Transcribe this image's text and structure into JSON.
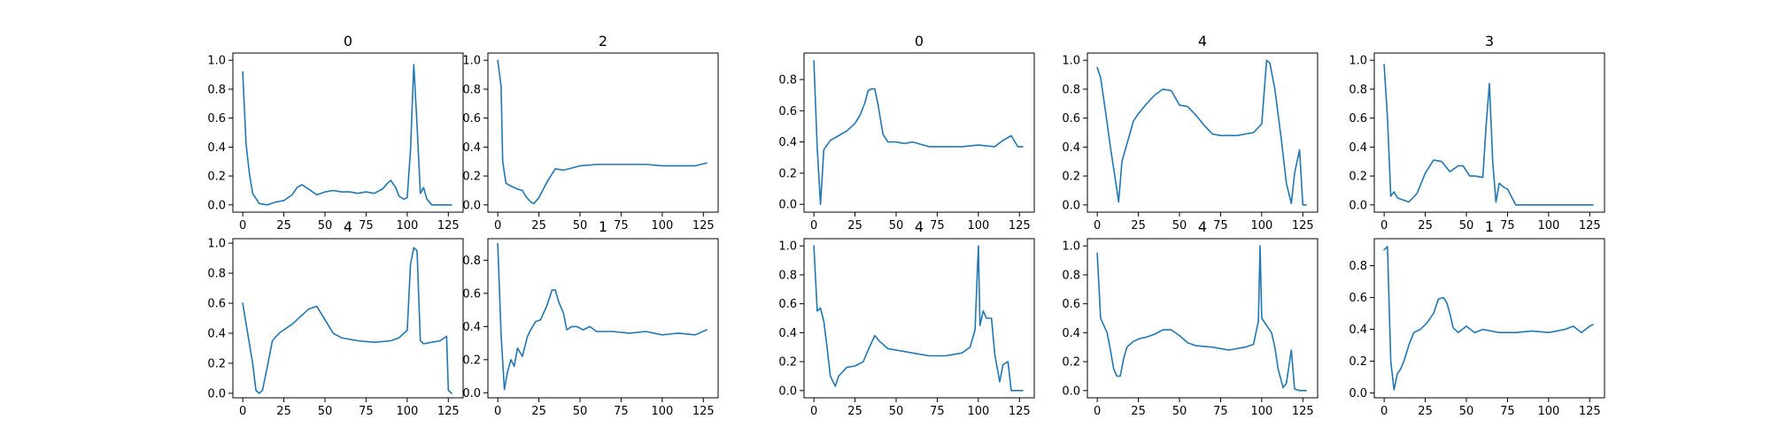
{
  "colors": {
    "line": "#1f77b4",
    "axes": "#000000",
    "background": "#ffffff"
  },
  "chart_data": [
    {
      "type": "line",
      "title": "0",
      "xlim": [
        -6,
        134
      ],
      "ylim": [
        -0.05,
        1.05
      ],
      "xticks": [
        "0",
        "25",
        "50",
        "75",
        "100",
        "125"
      ],
      "yticks": [
        "0.0",
        "0.2",
        "0.4",
        "0.6",
        "0.8",
        "1.0"
      ],
      "x": [
        0,
        2,
        4,
        6,
        10,
        15,
        20,
        25,
        30,
        33,
        36,
        40,
        45,
        50,
        55,
        60,
        65,
        70,
        75,
        80,
        85,
        88,
        90,
        93,
        95,
        98,
        100,
        102,
        104,
        106,
        108,
        110,
        112,
        115,
        120,
        127
      ],
      "y": [
        0.92,
        0.42,
        0.22,
        0.08,
        0.01,
        0.0,
        0.02,
        0.03,
        0.07,
        0.12,
        0.14,
        0.11,
        0.07,
        0.09,
        0.1,
        0.09,
        0.09,
        0.08,
        0.09,
        0.08,
        0.11,
        0.15,
        0.17,
        0.12,
        0.06,
        0.04,
        0.05,
        0.38,
        0.97,
        0.55,
        0.08,
        0.12,
        0.04,
        0.0,
        0.0,
        0.0
      ]
    },
    {
      "type": "line",
      "title": "2",
      "xlim": [
        -6,
        134
      ],
      "ylim": [
        -0.05,
        1.05
      ],
      "xticks": [
        "0",
        "25",
        "50",
        "75",
        "100",
        "125"
      ],
      "yticks": [
        "0.0",
        "0.2",
        "0.4",
        "0.6",
        "0.8",
        "1.0"
      ],
      "x": [
        0,
        2,
        3,
        5,
        8,
        12,
        15,
        17,
        20,
        22,
        25,
        30,
        35,
        40,
        50,
        60,
        75,
        90,
        100,
        110,
        120,
        127
      ],
      "y": [
        1.0,
        0.82,
        0.3,
        0.15,
        0.13,
        0.11,
        0.1,
        0.06,
        0.02,
        0.01,
        0.05,
        0.16,
        0.25,
        0.24,
        0.27,
        0.28,
        0.28,
        0.28,
        0.27,
        0.27,
        0.27,
        0.29
      ]
    },
    {
      "type": "line",
      "title": "0",
      "xlim": [
        -6,
        134
      ],
      "ylim": [
        -0.05,
        0.97
      ],
      "xticks": [
        "0",
        "25",
        "50",
        "75",
        "100",
        "125"
      ],
      "yticks": [
        "0.0",
        "0.2",
        "0.4",
        "0.6",
        "0.8"
      ],
      "x": [
        0,
        2,
        4,
        6,
        10,
        15,
        20,
        25,
        28,
        31,
        33,
        35,
        37,
        39,
        42,
        45,
        50,
        55,
        60,
        70,
        80,
        90,
        100,
        110,
        115,
        120,
        124,
        127
      ],
      "y": [
        0.92,
        0.36,
        0.0,
        0.35,
        0.41,
        0.44,
        0.47,
        0.52,
        0.57,
        0.65,
        0.73,
        0.74,
        0.74,
        0.64,
        0.45,
        0.4,
        0.4,
        0.39,
        0.4,
        0.37,
        0.37,
        0.37,
        0.38,
        0.37,
        0.41,
        0.44,
        0.37,
        0.37
      ]
    },
    {
      "type": "line",
      "title": "4",
      "xlim": [
        -6,
        134
      ],
      "ylim": [
        -0.05,
        1.05
      ],
      "xticks": [
        "0",
        "25",
        "50",
        "75",
        "100",
        "125"
      ],
      "yticks": [
        "0.0",
        "0.2",
        "0.4",
        "0.6",
        "0.8",
        "1.0"
      ],
      "x": [
        0,
        2,
        5,
        8,
        10,
        12,
        13,
        15,
        18,
        22,
        25,
        30,
        35,
        40,
        45,
        50,
        55,
        60,
        65,
        70,
        75,
        85,
        95,
        100,
        103,
        105,
        108,
        112,
        115,
        118,
        120,
        123,
        125,
        127
      ],
      "y": [
        0.95,
        0.88,
        0.65,
        0.4,
        0.25,
        0.1,
        0.02,
        0.3,
        0.42,
        0.58,
        0.63,
        0.7,
        0.76,
        0.8,
        0.79,
        0.69,
        0.68,
        0.62,
        0.55,
        0.49,
        0.48,
        0.48,
        0.5,
        0.56,
        1.0,
        0.98,
        0.8,
        0.45,
        0.15,
        0.01,
        0.22,
        0.38,
        0.0,
        0.0
      ]
    },
    {
      "type": "line",
      "title": "3",
      "xlim": [
        -6,
        134
      ],
      "ylim": [
        -0.05,
        1.05
      ],
      "xticks": [
        "0",
        "25",
        "50",
        "75",
        "100",
        "125"
      ],
      "yticks": [
        "0.0",
        "0.2",
        "0.4",
        "0.6",
        "0.8",
        "1.0"
      ],
      "x": [
        0,
        2,
        4,
        6,
        8,
        10,
        15,
        20,
        25,
        30,
        35,
        40,
        45,
        48,
        52,
        55,
        60,
        62,
        64,
        66,
        68,
        70,
        73,
        75,
        80,
        90,
        100,
        110,
        120,
        127
      ],
      "y": [
        0.97,
        0.6,
        0.06,
        0.09,
        0.05,
        0.04,
        0.02,
        0.08,
        0.22,
        0.31,
        0.3,
        0.23,
        0.27,
        0.27,
        0.2,
        0.2,
        0.19,
        0.55,
        0.84,
        0.3,
        0.02,
        0.15,
        0.12,
        0.11,
        0.0,
        0.0,
        0.0,
        0.0,
        0.0,
        0.0
      ]
    },
    {
      "type": "line",
      "title": "4",
      "xlim": [
        -6,
        134
      ],
      "ylim": [
        -0.03,
        1.03
      ],
      "xticks": [
        "0",
        "25",
        "50",
        "75",
        "100",
        "125"
      ],
      "yticks": [
        "0.0",
        "0.2",
        "0.4",
        "0.6",
        "0.8",
        "1.0"
      ],
      "x": [
        0,
        3,
        6,
        8,
        10,
        12,
        15,
        18,
        22,
        26,
        30,
        35,
        40,
        45,
        50,
        55,
        60,
        70,
        80,
        90,
        95,
        100,
        102,
        104,
        106,
        108,
        110,
        115,
        120,
        124,
        125,
        127
      ],
      "y": [
        0.6,
        0.4,
        0.2,
        0.02,
        0.0,
        0.02,
        0.18,
        0.35,
        0.4,
        0.43,
        0.46,
        0.51,
        0.56,
        0.58,
        0.49,
        0.4,
        0.37,
        0.35,
        0.34,
        0.35,
        0.37,
        0.42,
        0.86,
        0.97,
        0.95,
        0.35,
        0.33,
        0.34,
        0.35,
        0.38,
        0.02,
        0.0
      ]
    },
    {
      "type": "line",
      "title": "1",
      "xlim": [
        -6,
        134
      ],
      "ylim": [
        -0.03,
        0.93
      ],
      "xticks": [
        "0",
        "25",
        "50",
        "75",
        "100",
        "125"
      ],
      "yticks": [
        "0.0",
        "0.2",
        "0.4",
        "0.6",
        "0.8"
      ],
      "x": [
        0,
        2,
        4,
        6,
        8,
        10,
        12,
        15,
        18,
        20,
        23,
        26,
        30,
        33,
        35,
        37,
        40,
        42,
        45,
        48,
        52,
        56,
        60,
        70,
        80,
        90,
        100,
        110,
        120,
        127
      ],
      "y": [
        0.9,
        0.35,
        0.02,
        0.13,
        0.2,
        0.16,
        0.27,
        0.22,
        0.34,
        0.38,
        0.43,
        0.44,
        0.53,
        0.62,
        0.62,
        0.55,
        0.48,
        0.38,
        0.4,
        0.4,
        0.38,
        0.4,
        0.37,
        0.37,
        0.36,
        0.37,
        0.35,
        0.36,
        0.35,
        0.38
      ]
    },
    {
      "type": "line",
      "title": "4",
      "xlim": [
        -6,
        134
      ],
      "ylim": [
        -0.05,
        1.05
      ],
      "xticks": [
        "0",
        "25",
        "50",
        "75",
        "100",
        "125"
      ],
      "yticks": [
        "0.0",
        "0.2",
        "0.4",
        "0.6",
        "0.8",
        "1.0"
      ],
      "x": [
        0,
        2,
        4,
        6,
        8,
        10,
        13,
        15,
        20,
        25,
        30,
        33,
        37,
        40,
        45,
        50,
        60,
        70,
        80,
        90,
        95,
        98,
        100,
        101,
        103,
        105,
        108,
        110,
        113,
        115,
        118,
        120,
        122,
        127
      ],
      "y": [
        1.0,
        0.55,
        0.57,
        0.48,
        0.3,
        0.1,
        0.03,
        0.1,
        0.16,
        0.17,
        0.2,
        0.28,
        0.38,
        0.34,
        0.29,
        0.28,
        0.26,
        0.24,
        0.24,
        0.26,
        0.3,
        0.42,
        1.0,
        0.45,
        0.55,
        0.5,
        0.5,
        0.25,
        0.06,
        0.18,
        0.2,
        0.0,
        0.0,
        0.0
      ]
    },
    {
      "type": "line",
      "title": "4",
      "xlim": [
        -6,
        134
      ],
      "ylim": [
        -0.05,
        1.05
      ],
      "xticks": [
        "0",
        "25",
        "50",
        "75",
        "100",
        "125"
      ],
      "yticks": [
        "0.0",
        "0.2",
        "0.4",
        "0.6",
        "0.8",
        "1.0"
      ],
      "x": [
        0,
        2,
        4,
        6,
        8,
        10,
        12,
        14,
        16,
        18,
        22,
        26,
        30,
        35,
        40,
        45,
        50,
        55,
        60,
        70,
        80,
        90,
        95,
        98,
        99,
        100,
        103,
        106,
        108,
        110,
        113,
        115,
        118,
        120,
        123,
        127
      ],
      "y": [
        0.95,
        0.5,
        0.45,
        0.4,
        0.28,
        0.15,
        0.1,
        0.1,
        0.22,
        0.3,
        0.34,
        0.36,
        0.37,
        0.39,
        0.42,
        0.42,
        0.38,
        0.33,
        0.31,
        0.3,
        0.28,
        0.3,
        0.32,
        0.48,
        1.0,
        0.5,
        0.45,
        0.4,
        0.3,
        0.15,
        0.02,
        0.05,
        0.28,
        0.01,
        0.0,
        0.0
      ]
    },
    {
      "type": "line",
      "title": "1",
      "xlim": [
        -6,
        134
      ],
      "ylim": [
        -0.03,
        0.97
      ],
      "xticks": [
        "0",
        "25",
        "50",
        "75",
        "100",
        "125"
      ],
      "yticks": [
        "0.0",
        "0.2",
        "0.4",
        "0.6",
        "0.8"
      ],
      "x": [
        0,
        2,
        4,
        6,
        8,
        10,
        12,
        15,
        18,
        22,
        26,
        30,
        33,
        36,
        38,
        40,
        42,
        45,
        50,
        55,
        60,
        70,
        80,
        90,
        100,
        110,
        115,
        120,
        125,
        127
      ],
      "y": [
        0.9,
        0.92,
        0.2,
        0.02,
        0.12,
        0.15,
        0.2,
        0.3,
        0.38,
        0.4,
        0.44,
        0.5,
        0.59,
        0.6,
        0.57,
        0.5,
        0.41,
        0.38,
        0.42,
        0.38,
        0.4,
        0.38,
        0.38,
        0.39,
        0.38,
        0.4,
        0.42,
        0.38,
        0.42,
        0.43
      ]
    }
  ]
}
